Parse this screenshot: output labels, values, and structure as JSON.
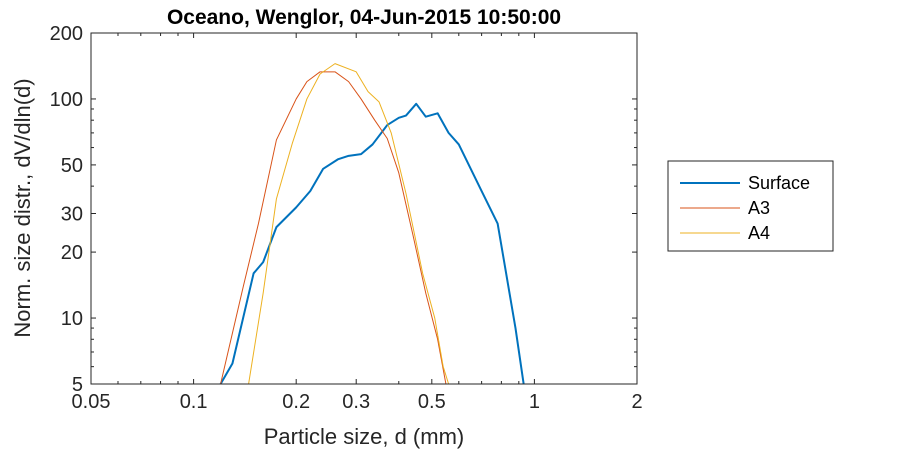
{
  "chart_data": {
    "type": "line",
    "title": "Oceano, Wenglor, 04-Jun-2015 10:50:00",
    "xlabel": "Particle size, d (mm)",
    "ylabel": "Norm. size distr., dV/dln(d)",
    "xscale": "log",
    "yscale": "log",
    "xlim": [
      0.05,
      2
    ],
    "ylim": [
      5,
      200
    ],
    "xticks": [
      0.05,
      0.1,
      0.2,
      0.3,
      0.5,
      1,
      2
    ],
    "xtick_labels": [
      "0.05",
      "0.1",
      "0.2",
      "0.3",
      "0.5",
      "1",
      "2"
    ],
    "yticks": [
      5,
      10,
      20,
      30,
      50,
      100,
      200
    ],
    "ytick_labels": [
      "5",
      "10",
      "20",
      "30",
      "50",
      "100",
      "200"
    ],
    "grid": false,
    "legend_position": "outside-right",
    "series": [
      {
        "name": "Surface",
        "color": "#0072BD",
        "line_width": 2,
        "points": [
          [
            0.12,
            5
          ],
          [
            0.13,
            6.2
          ],
          [
            0.15,
            16
          ],
          [
            0.16,
            18
          ],
          [
            0.175,
            26
          ],
          [
            0.2,
            32
          ],
          [
            0.22,
            38
          ],
          [
            0.24,
            48
          ],
          [
            0.265,
            53
          ],
          [
            0.285,
            55
          ],
          [
            0.31,
            56
          ],
          [
            0.335,
            62
          ],
          [
            0.37,
            76
          ],
          [
            0.4,
            82
          ],
          [
            0.42,
            84
          ],
          [
            0.45,
            95
          ],
          [
            0.48,
            83
          ],
          [
            0.52,
            86
          ],
          [
            0.56,
            70
          ],
          [
            0.6,
            62
          ],
          [
            0.7,
            38
          ],
          [
            0.78,
            27
          ],
          [
            0.88,
            9
          ],
          [
            0.93,
            5
          ]
        ]
      },
      {
        "name": "A3",
        "color": "#D95319",
        "line_width": 1,
        "points": [
          [
            0.12,
            5
          ],
          [
            0.14,
            14
          ],
          [
            0.155,
            27
          ],
          [
            0.175,
            65
          ],
          [
            0.2,
            100
          ],
          [
            0.215,
            120
          ],
          [
            0.235,
            133
          ],
          [
            0.26,
            133
          ],
          [
            0.285,
            120
          ],
          [
            0.31,
            100
          ],
          [
            0.34,
            80
          ],
          [
            0.37,
            66
          ],
          [
            0.4,
            46
          ],
          [
            0.44,
            24
          ],
          [
            0.48,
            13
          ],
          [
            0.52,
            8
          ],
          [
            0.55,
            5
          ]
        ]
      },
      {
        "name": "A4",
        "color": "#EDB120",
        "line_width": 1,
        "points": [
          [
            0.145,
            5
          ],
          [
            0.16,
            13
          ],
          [
            0.175,
            35
          ],
          [
            0.195,
            63
          ],
          [
            0.215,
            100
          ],
          [
            0.235,
            130
          ],
          [
            0.26,
            145
          ],
          [
            0.3,
            133
          ],
          [
            0.325,
            108
          ],
          [
            0.35,
            97
          ],
          [
            0.38,
            70
          ],
          [
            0.42,
            37
          ],
          [
            0.47,
            16
          ],
          [
            0.51,
            10
          ],
          [
            0.54,
            6
          ],
          [
            0.56,
            5
          ]
        ]
      }
    ]
  }
}
